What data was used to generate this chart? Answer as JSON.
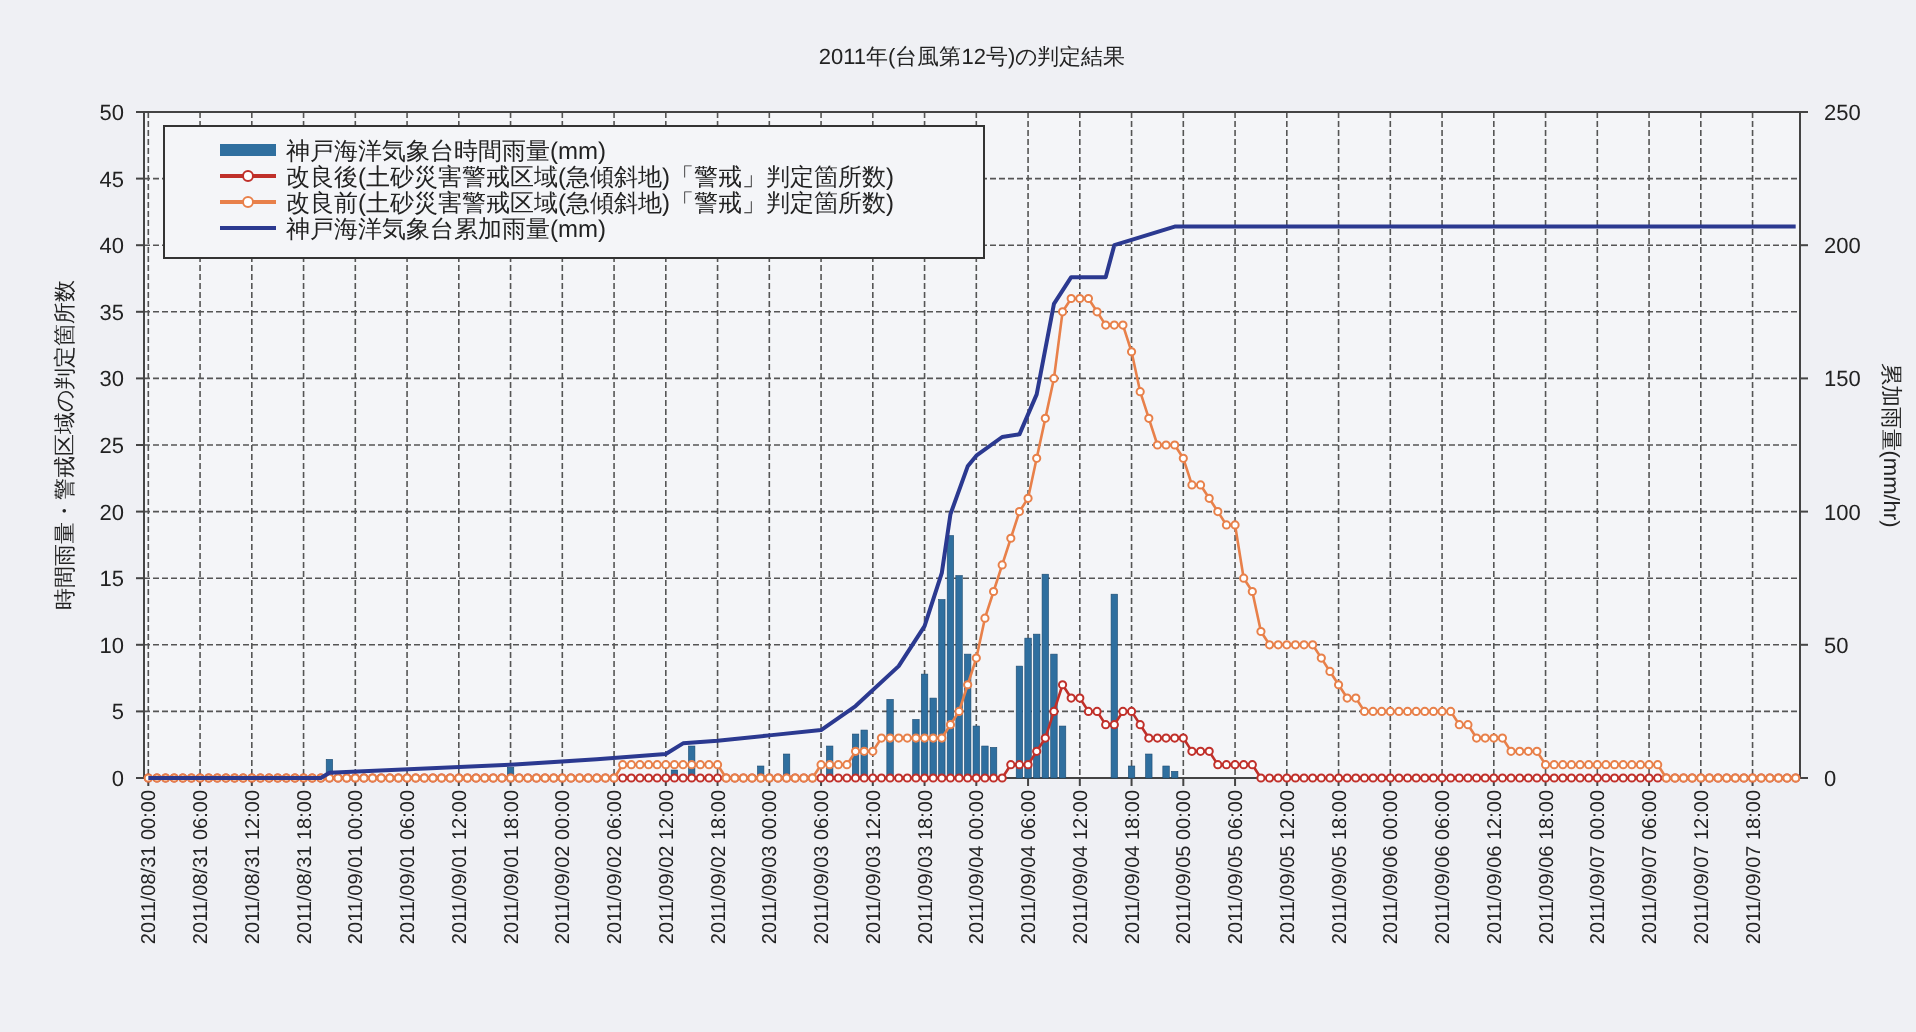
{
  "chart_data": {
    "type": "line",
    "title": "2011年(台風第12号)の判定結果",
    "ylabel": "時間雨量・警戒区域の判定箇所数",
    "y2label": "累加雨量(mm/hr)",
    "x": [
      "2011-08-31T00:00",
      "2011-08-31T01:00",
      "2011-08-31T02:00",
      "2011-08-31T03:00",
      "2011-08-31T04:00",
      "2011-08-31T05:00",
      "2011-08-31T06:00",
      "2011-08-31T07:00",
      "2011-08-31T08:00",
      "2011-08-31T09:00",
      "2011-08-31T10:00",
      "2011-08-31T11:00",
      "2011-08-31T12:00",
      "2011-08-31T13:00",
      "2011-08-31T14:00",
      "2011-08-31T15:00",
      "2011-08-31T16:00",
      "2011-08-31T17:00",
      "2011-08-31T18:00",
      "2011-08-31T19:00",
      "2011-08-31T20:00",
      "2011-08-31T21:00",
      "2011-08-31T22:00",
      "2011-08-31T23:00",
      "2011-09-01T00:00",
      "2011-09-01T01:00",
      "2011-09-01T02:00",
      "2011-09-01T03:00",
      "2011-09-01T04:00",
      "2011-09-01T05:00",
      "2011-09-01T06:00",
      "2011-09-01T07:00",
      "2011-09-01T08:00",
      "2011-09-01T09:00",
      "2011-09-01T10:00",
      "2011-09-01T11:00",
      "2011-09-01T12:00",
      "2011-09-01T13:00",
      "2011-09-01T14:00",
      "2011-09-01T15:00",
      "2011-09-01T16:00",
      "2011-09-01T17:00",
      "2011-09-01T18:00",
      "2011-09-01T19:00",
      "2011-09-01T20:00",
      "2011-09-01T21:00",
      "2011-09-01T22:00",
      "2011-09-01T23:00",
      "2011-09-02T00:00",
      "2011-09-02T01:00",
      "2011-09-02T02:00",
      "2011-09-02T03:00",
      "2011-09-02T04:00",
      "2011-09-02T05:00",
      "2011-09-02T06:00",
      "2011-09-02T07:00",
      "2011-09-02T08:00",
      "2011-09-02T09:00",
      "2011-09-02T10:00",
      "2011-09-02T11:00",
      "2011-09-02T12:00",
      "2011-09-02T13:00",
      "2011-09-02T14:00",
      "2011-09-02T15:00",
      "2011-09-02T16:00",
      "2011-09-02T17:00",
      "2011-09-02T18:00",
      "2011-09-02T19:00",
      "2011-09-02T20:00",
      "2011-09-02T21:00",
      "2011-09-02T22:00",
      "2011-09-02T23:00",
      "2011-09-03T00:00",
      "2011-09-03T01:00",
      "2011-09-03T02:00",
      "2011-09-03T03:00",
      "2011-09-03T04:00",
      "2011-09-03T05:00",
      "2011-09-03T06:00",
      "2011-09-03T07:00",
      "2011-09-03T08:00",
      "2011-09-03T09:00",
      "2011-09-03T10:00",
      "2011-09-03T11:00",
      "2011-09-03T12:00",
      "2011-09-03T13:00",
      "2011-09-03T14:00",
      "2011-09-03T15:00",
      "2011-09-03T16:00",
      "2011-09-03T17:00",
      "2011-09-03T18:00",
      "2011-09-03T19:00",
      "2011-09-03T20:00",
      "2011-09-03T21:00",
      "2011-09-03T22:00",
      "2011-09-03T23:00",
      "2011-09-04T00:00",
      "2011-09-04T01:00",
      "2011-09-04T02:00",
      "2011-09-04T03:00",
      "2011-09-04T04:00",
      "2011-09-04T05:00",
      "2011-09-04T06:00",
      "2011-09-04T07:00",
      "2011-09-04T08:00",
      "2011-09-04T09:00",
      "2011-09-04T10:00",
      "2011-09-04T11:00",
      "2011-09-04T12:00",
      "2011-09-04T13:00",
      "2011-09-04T14:00",
      "2011-09-04T15:00",
      "2011-09-04T16:00",
      "2011-09-04T17:00",
      "2011-09-04T18:00",
      "2011-09-04T19:00",
      "2011-09-04T20:00",
      "2011-09-04T21:00",
      "2011-09-04T22:00",
      "2011-09-04T23:00",
      "2011-09-05T00:00",
      "2011-09-05T01:00",
      "2011-09-05T02:00",
      "2011-09-05T03:00",
      "2011-09-05T04:00",
      "2011-09-05T05:00",
      "2011-09-05T06:00",
      "2011-09-05T07:00",
      "2011-09-05T08:00",
      "2011-09-05T09:00",
      "2011-09-05T10:00",
      "2011-09-05T11:00",
      "2011-09-05T12:00",
      "2011-09-05T13:00",
      "2011-09-05T14:00",
      "2011-09-05T15:00",
      "2011-09-05T16:00",
      "2011-09-05T17:00",
      "2011-09-05T18:00",
      "2011-09-05T19:00",
      "2011-09-05T20:00",
      "2011-09-05T21:00",
      "2011-09-05T22:00",
      "2011-09-05T23:00",
      "2011-09-06T00:00",
      "2011-09-06T01:00",
      "2011-09-06T02:00",
      "2011-09-06T03:00",
      "2011-09-06T04:00",
      "2011-09-06T05:00",
      "2011-09-06T06:00",
      "2011-09-06T07:00",
      "2011-09-06T08:00",
      "2011-09-06T09:00",
      "2011-09-06T10:00",
      "2011-09-06T11:00",
      "2011-09-06T12:00",
      "2011-09-06T13:00",
      "2011-09-06T14:00",
      "2011-09-06T15:00",
      "2011-09-06T16:00",
      "2011-09-06T17:00",
      "2011-09-06T18:00",
      "2011-09-06T19:00",
      "2011-09-06T20:00",
      "2011-09-06T21:00",
      "2011-09-06T22:00",
      "2011-09-06T23:00",
      "2011-09-07T00:00",
      "2011-09-07T01:00",
      "2011-09-07T02:00",
      "2011-09-07T03:00",
      "2011-09-07T04:00",
      "2011-09-07T05:00",
      "2011-09-07T06:00",
      "2011-09-07T07:00",
      "2011-09-07T08:00",
      "2011-09-07T09:00",
      "2011-09-07T10:00",
      "2011-09-07T11:00",
      "2011-09-07T12:00",
      "2011-09-07T13:00",
      "2011-09-07T14:00",
      "2011-09-07T15:00",
      "2011-09-07T16:00",
      "2011-09-07T17:00",
      "2011-09-07T18:00",
      "2011-09-07T19:00",
      "2011-09-07T20:00",
      "2011-09-07T21:00",
      "2011-09-07T22:00",
      "2011-09-07T23:00"
    ],
    "xlim": [
      "2011-08-30T23:30",
      "2011-09-07T23:30"
    ],
    "xticks": [
      {
        "value": "2011-08-31T00:00",
        "label": "2011/08/31 00:00"
      },
      {
        "value": "2011-08-31T06:00",
        "label": "2011/08/31 06:00"
      },
      {
        "value": "2011-08-31T12:00",
        "label": "2011/08/31 12:00"
      },
      {
        "value": "2011-08-31T18:00",
        "label": "2011/08/31 18:00"
      },
      {
        "value": "2011-09-01T00:00",
        "label": "2011/09/01 00:00"
      },
      {
        "value": "2011-09-01T06:00",
        "label": "2011/09/01 06:00"
      },
      {
        "value": "2011-09-01T12:00",
        "label": "2011/09/01 12:00"
      },
      {
        "value": "2011-09-01T18:00",
        "label": "2011/09/01 18:00"
      },
      {
        "value": "2011-09-02T00:00",
        "label": "2011/09/02 00:00"
      },
      {
        "value": "2011-09-02T06:00",
        "label": "2011/09/02 06:00"
      },
      {
        "value": "2011-09-02T12:00",
        "label": "2011/09/02 12:00"
      },
      {
        "value": "2011-09-02T18:00",
        "label": "2011/09/02 18:00"
      },
      {
        "value": "2011-09-03T00:00",
        "label": "2011/09/03 00:00"
      },
      {
        "value": "2011-09-03T06:00",
        "label": "2011/09/03 06:00"
      },
      {
        "value": "2011-09-03T12:00",
        "label": "2011/09/03 12:00"
      },
      {
        "value": "2011-09-03T18:00",
        "label": "2011/09/03 18:00"
      },
      {
        "value": "2011-09-04T00:00",
        "label": "2011/09/04 00:00"
      },
      {
        "value": "2011-09-04T06:00",
        "label": "2011/09/04 06:00"
      },
      {
        "value": "2011-09-04T12:00",
        "label": "2011/09/04 12:00"
      },
      {
        "value": "2011-09-04T18:00",
        "label": "2011/09/04 18:00"
      },
      {
        "value": "2011-09-05T00:00",
        "label": "2011/09/05 00:00"
      },
      {
        "value": "2011-09-05T06:00",
        "label": "2011/09/05 06:00"
      },
      {
        "value": "2011-09-05T12:00",
        "label": "2011/09/05 12:00"
      },
      {
        "value": "2011-09-05T18:00",
        "label": "2011/09/05 18:00"
      },
      {
        "value": "2011-09-06T00:00",
        "label": "2011/09/06 00:00"
      },
      {
        "value": "2011-09-06T06:00",
        "label": "2011/09/06 06:00"
      },
      {
        "value": "2011-09-06T12:00",
        "label": "2011/09/06 12:00"
      },
      {
        "value": "2011-09-06T18:00",
        "label": "2011/09/06 18:00"
      },
      {
        "value": "2011-09-07T00:00",
        "label": "2011/09/07 00:00"
      },
      {
        "value": "2011-09-07T06:00",
        "label": "2011/09/07 06:00"
      },
      {
        "value": "2011-09-07T12:00",
        "label": "2011/09/07 12:00"
      },
      {
        "value": "2011-09-07T18:00",
        "label": "2011/09/07 18:00"
      }
    ],
    "ylim": [
      0,
      50
    ],
    "yticks": [
      0,
      5,
      10,
      15,
      20,
      25,
      30,
      35,
      40,
      45,
      50
    ],
    "y2lim": [
      0,
      250
    ],
    "y2ticks": [
      0,
      50,
      100,
      150,
      200,
      250
    ],
    "grid": true,
    "legend": "top left",
    "series": [
      {
        "name": "神戸海洋気象台時間雨量(mm)",
        "type": "bar",
        "color": "#2f6f9f",
        "x": [
          "2011-08-31T21:00",
          "2011-09-01T18:00",
          "2011-09-02T13:00",
          "2011-09-02T15:00",
          "2011-09-02T23:00",
          "2011-09-03T02:00",
          "2011-09-03T07:00",
          "2011-09-03T10:00",
          "2011-09-03T11:00",
          "2011-09-03T14:00",
          "2011-09-03T17:00",
          "2011-09-03T18:00",
          "2011-09-03T19:00",
          "2011-09-03T20:00",
          "2011-09-03T21:00",
          "2011-09-03T22:00",
          "2011-09-03T23:00",
          "2011-09-04T00:00",
          "2011-09-04T01:00",
          "2011-09-04T02:00",
          "2011-09-04T05:00",
          "2011-09-04T06:00",
          "2011-09-04T07:00",
          "2011-09-04T08:00",
          "2011-09-04T09:00",
          "2011-09-04T10:00",
          "2011-09-04T16:00",
          "2011-09-04T18:00",
          "2011-09-04T20:00",
          "2011-09-04T22:00",
          "2011-09-04T23:00"
        ],
        "values": [
          1.4,
          0.8,
          0.6,
          2.4,
          0.9,
          1.8,
          2.4,
          3.3,
          3.6,
          5.9,
          4.4,
          7.8,
          6,
          13.4,
          18.2,
          15.2,
          9.3,
          3.9,
          2.4,
          2.3,
          8.4,
          10.5,
          10.8,
          15.3,
          9.3,
          3.9,
          13.8,
          0.9,
          1.8,
          0.9,
          0.5
        ]
      },
      {
        "name": "改良後(土砂災害警戒区域(急傾斜地)「警戒」判定箇所数)",
        "color": "#c0302a",
        "marker": "circle",
        "values": [
          0,
          0,
          0,
          0,
          0,
          0,
          0,
          0,
          0,
          0,
          0,
          0,
          0,
          0,
          0,
          0,
          0,
          0,
          0,
          0,
          0,
          0,
          0,
          0,
          0,
          0,
          0,
          0,
          0,
          0,
          0,
          0,
          0,
          0,
          0,
          0,
          0,
          0,
          0,
          0,
          0,
          0,
          0,
          0,
          0,
          0,
          0,
          0,
          0,
          0,
          0,
          0,
          0,
          0,
          0,
          0,
          0,
          0,
          0,
          0,
          0,
          0,
          0,
          0,
          0,
          0,
          0,
          0,
          0,
          0,
          0,
          0,
          0,
          0,
          0,
          0,
          0,
          0,
          0,
          0,
          0,
          0,
          0,
          0,
          0,
          0,
          0,
          0,
          0,
          0,
          0,
          0,
          0,
          0,
          0,
          0,
          0,
          0,
          0,
          0,
          1,
          1,
          1,
          2,
          3,
          5,
          7,
          6,
          6,
          5,
          5,
          4,
          4,
          5,
          5,
          4,
          3,
          3,
          3,
          3,
          3,
          2,
          2,
          2,
          1,
          1,
          1,
          1,
          1,
          0,
          0,
          0,
          0,
          0,
          0,
          0,
          0,
          0,
          0,
          0,
          0,
          0,
          0,
          0,
          0,
          0,
          0,
          0,
          0,
          0,
          0,
          0,
          0,
          0,
          0,
          0,
          0,
          0,
          0,
          0,
          0,
          0,
          0,
          0,
          0,
          0,
          0,
          0,
          0,
          0,
          0,
          0,
          0,
          0,
          0,
          0,
          0,
          0,
          0,
          0,
          0,
          0,
          0,
          0,
          0,
          0,
          0,
          0,
          0,
          0,
          0,
          0
        ]
      },
      {
        "name": "改良前(土砂災害警戒区域(急傾斜地)「警戒」判定箇所数)",
        "color": "#e8804a",
        "marker": "circle",
        "values": [
          0,
          0,
          0,
          0,
          0,
          0,
          0,
          0,
          0,
          0,
          0,
          0,
          0,
          0,
          0,
          0,
          0,
          0,
          0,
          0,
          0,
          0,
          0,
          0,
          0,
          0,
          0,
          0,
          0,
          0,
          0,
          0,
          0,
          0,
          0,
          0,
          0,
          0,
          0,
          0,
          0,
          0,
          0,
          0,
          0,
          0,
          0,
          0,
          0,
          0,
          0,
          0,
          0,
          0,
          0,
          1,
          1,
          1,
          1,
          1,
          1,
          1,
          1,
          1,
          1,
          1,
          1,
          0,
          0,
          0,
          0,
          0,
          0,
          0,
          0,
          0,
          0,
          0,
          1,
          1,
          1,
          1,
          2,
          2,
          2,
          3,
          3,
          3,
          3,
          3,
          3,
          3,
          3,
          4,
          5,
          7,
          9,
          12,
          14,
          16,
          18,
          20,
          21,
          24,
          27,
          30,
          35,
          36,
          36,
          36,
          35,
          34,
          34,
          34,
          32,
          29,
          27,
          25,
          25,
          25,
          24,
          22,
          22,
          21,
          20,
          19,
          19,
          15,
          14,
          11,
          10,
          10,
          10,
          10,
          10,
          10,
          9,
          8,
          7,
          6,
          6,
          5,
          5,
          5,
          5,
          5,
          5,
          5,
          5,
          5,
          5,
          5,
          4,
          4,
          3,
          3,
          3,
          3,
          2,
          2,
          2,
          2,
          1,
          1,
          1,
          1,
          1,
          1,
          1,
          1,
          1,
          1,
          1,
          1,
          1,
          1,
          0,
          0,
          0,
          0,
          0,
          0,
          0,
          0,
          0,
          0,
          0,
          0,
          0,
          0,
          0,
          0
        ]
      },
      {
        "name": "神戸海洋気象台累加雨量(mm)",
        "axis": "y2",
        "color": "#2b3990",
        "x": [
          "2011-08-31T00:00",
          "2011-08-31T20:00",
          "2011-08-31T21:00",
          "2011-09-01T18:00",
          "2011-09-02T04:00",
          "2011-09-02T12:00",
          "2011-09-02T14:00",
          "2011-09-02T18:00",
          "2011-09-03T00:00",
          "2011-09-03T06:00",
          "2011-09-03T10:00",
          "2011-09-03T15:00",
          "2011-09-03T18:00",
          "2011-09-03T20:00",
          "2011-09-03T21:00",
          "2011-09-03T23:00",
          "2011-09-04T00:00",
          "2011-09-04T03:00",
          "2011-09-04T05:00",
          "2011-09-04T07:00",
          "2011-09-04T09:00",
          "2011-09-04T11:00",
          "2011-09-04T15:00",
          "2011-09-04T16:00",
          "2011-09-04T18:00",
          "2011-09-04T23:00",
          "2011-09-07T23:00"
        ],
        "values": [
          0,
          0,
          2,
          5,
          7,
          9,
          13,
          14,
          16,
          18,
          27,
          42,
          57,
          77,
          99,
          117,
          121,
          128,
          129,
          144,
          178,
          188,
          188,
          200,
          202,
          207,
          207
        ]
      }
    ]
  }
}
